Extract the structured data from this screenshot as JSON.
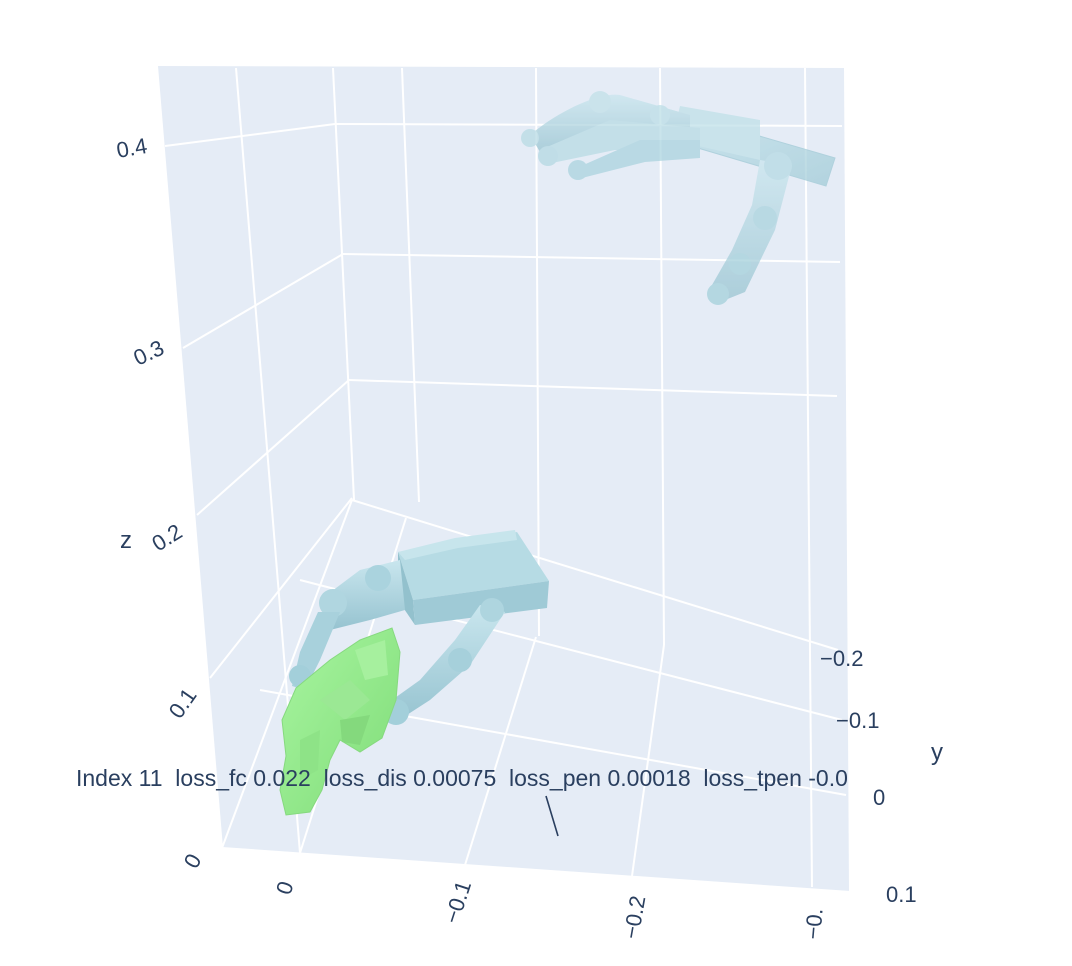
{
  "chart_data": {
    "type": "mesh3d",
    "axes": {
      "x": {
        "title": "",
        "ticks": [
          "0",
          "−0.1",
          "−0.2",
          "−0."
        ]
      },
      "y": {
        "title": "y",
        "ticks": [
          "−0.2",
          "−0.1",
          "0",
          "0.1"
        ]
      },
      "z": {
        "title": "z",
        "ticks": [
          "0",
          "0.1",
          "0.2",
          "0.3",
          "0.4"
        ]
      }
    },
    "grid": true,
    "background": "#e5ecf6",
    "gridcolor": "#ffffff",
    "series": [
      {
        "kind": "hand-mesh",
        "color": "#add8e6",
        "opacity": 0.6
      },
      {
        "kind": "hand-mesh",
        "color": "#add8e6",
        "opacity": 1.0
      },
      {
        "kind": "object-mesh",
        "color": "#90ee90",
        "opacity": 1.0
      }
    ],
    "annotation": "Index 11  loss_fc 0.022  loss_dis 0.00075  loss_pen 0.00018  loss_tpen -0.0"
  }
}
